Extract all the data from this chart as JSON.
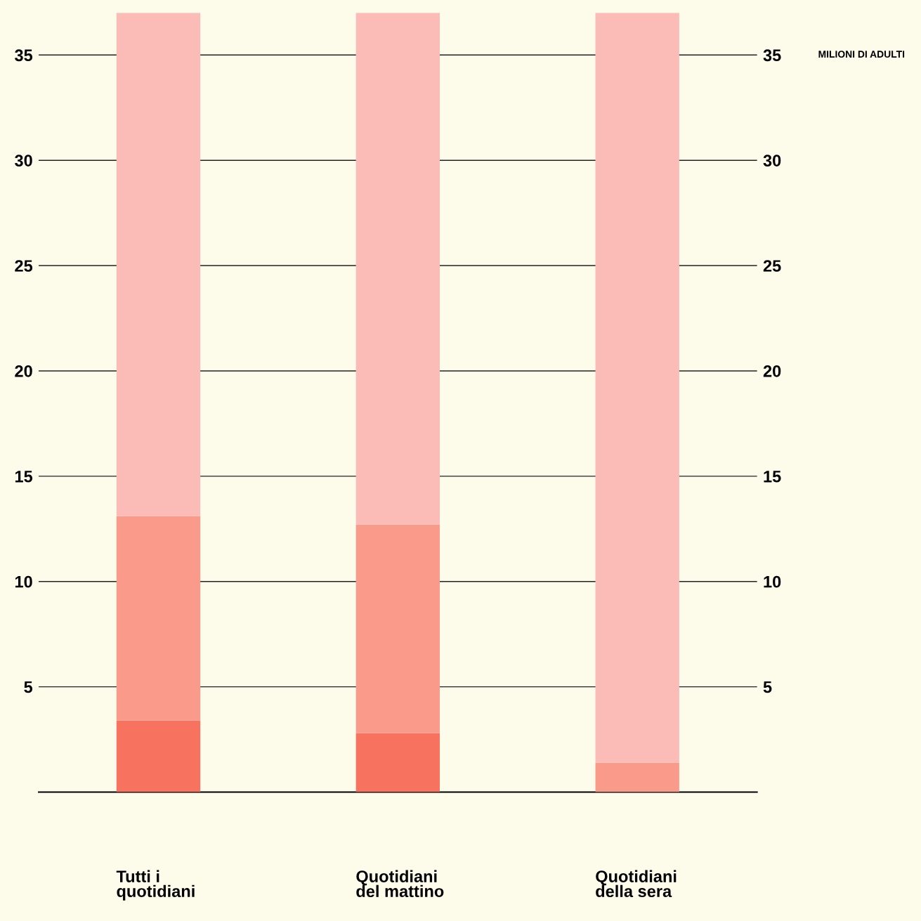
{
  "chart_data": {
    "type": "bar",
    "stacked": true,
    "y2label": "MILIONI DI ADULTI",
    "categories": [
      "Tutti i\nquotidiani",
      "Quotidiani\ndel mattino",
      "Quotidiani\ndella sera"
    ],
    "series": [
      {
        "color": "#f7725f",
        "values": [
          3.4,
          2.8,
          0
        ]
      },
      {
        "color": "#f99a8a",
        "values": [
          9.7,
          9.9,
          1.4
        ]
      },
      {
        "color": "#fbbcb8",
        "values": [
          23.9,
          24.3,
          35.6
        ]
      }
    ],
    "ylim": [
      0,
      37
    ],
    "yticks": [
      5,
      10,
      15,
      20,
      25,
      30,
      35
    ],
    "y2lim": [
      0,
      37
    ],
    "y2ticks": [
      5,
      10,
      15,
      20,
      25,
      30,
      35
    ],
    "grid": "y",
    "legend": false
  }
}
